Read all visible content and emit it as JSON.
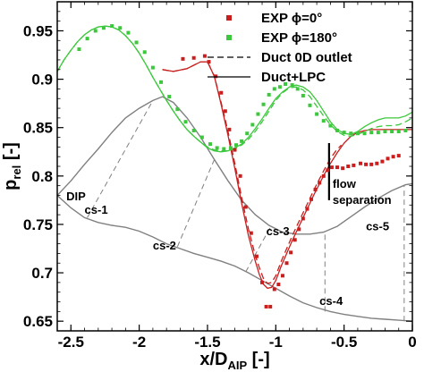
{
  "chart_data": {
    "type": "line",
    "xlim": [
      -2.6,
      0.0
    ],
    "ylim": [
      0.64,
      0.98
    ],
    "xticks": [
      -2.5,
      -2,
      -1.5,
      -1,
      -0.5,
      0
    ],
    "xtick_labels": [
      "-2.5",
      "-2",
      "-1.5",
      "-1",
      "-0.5",
      "0"
    ],
    "yticks": [
      0.65,
      0.7,
      0.75,
      0.8,
      0.85,
      0.9,
      0.95
    ],
    "ytick_labels": [
      "0.65",
      "0.7",
      "0.75",
      "0.8",
      "0.85",
      "0.9",
      "0.95"
    ],
    "xlabel": {
      "main": "x/D",
      "sub": "AIP",
      "tail": " [-]"
    },
    "ylabel": {
      "main": "p",
      "sub": "rel",
      "tail": " [-]"
    },
    "grid": false,
    "legend_position": "top-right",
    "legend": [
      {
        "label": "EXP ϕ=0°",
        "color": "#c81e1e",
        "style": "marker"
      },
      {
        "label": "EXP ϕ=180°",
        "color": "#3cc83c",
        "style": "marker"
      },
      {
        "label": "Duct 0D outlet",
        "color": "#000000",
        "style": "dashed"
      },
      {
        "label": "Duct+LPC",
        "color": "#000000",
        "style": "solid"
      }
    ],
    "series": [
      {
        "name": "EXP ϕ=0°",
        "kind": "markers",
        "color": "#c81e1e",
        "x": [
          -1.68,
          -1.6,
          -1.52,
          -1.49,
          -1.44,
          -1.4,
          -1.37,
          -1.34,
          -1.3,
          -1.26,
          -1.22,
          -1.18,
          -1.14,
          -1.1,
          -1.07,
          -1.04,
          -1.01,
          -0.98,
          -0.95,
          -0.92,
          -0.89,
          -0.86,
          -0.83,
          -0.8,
          -0.77,
          -0.74,
          -0.71,
          -0.68,
          -0.65,
          -0.62,
          -0.59,
          -0.55,
          -0.51,
          -0.47,
          -0.43,
          -0.38,
          -0.34,
          -0.3,
          -0.26,
          -0.22,
          -0.18,
          -0.14,
          -0.1
        ],
        "y": [
          0.921,
          0.922,
          0.924,
          0.918,
          0.903,
          0.886,
          0.867,
          0.848,
          0.827,
          0.8,
          0.768,
          0.741,
          0.717,
          0.69,
          0.665,
          0.665,
          0.683,
          0.688,
          0.697,
          0.71,
          0.721,
          0.734,
          0.745,
          0.756,
          0.766,
          0.776,
          0.786,
          0.793,
          0.8,
          0.806,
          0.809,
          0.809,
          0.808,
          0.81,
          0.811,
          0.813,
          0.812,
          0.812,
          0.813,
          0.815,
          0.818,
          0.82,
          0.821
        ]
      },
      {
        "name": "EXP ϕ=180°",
        "kind": "markers",
        "color": "#3cc83c",
        "x": [
          -2.44,
          -2.38,
          -2.32,
          -2.26,
          -2.2,
          -2.14,
          -2.08,
          -2.02,
          -1.96,
          -1.9,
          -1.84,
          -1.78,
          -1.72,
          -1.66,
          -1.6,
          -1.54,
          -1.48,
          -1.43,
          -1.38,
          -1.33,
          -1.29,
          -1.25,
          -1.21,
          -1.17,
          -1.13,
          -1.09,
          -1.05,
          -1.01,
          -0.97,
          -0.93,
          -0.88,
          -0.84,
          -0.8,
          -0.75,
          -0.7,
          -0.65,
          -0.6,
          -0.55,
          -0.5,
          -0.45,
          -0.4,
          -0.35,
          -0.3,
          -0.25,
          -0.2,
          -0.15,
          -0.1,
          -0.05
        ],
        "y": [
          0.931,
          0.942,
          0.95,
          0.953,
          0.955,
          0.953,
          0.948,
          0.938,
          0.928,
          0.912,
          0.897,
          0.882,
          0.869,
          0.856,
          0.847,
          0.84,
          0.833,
          0.829,
          0.828,
          0.829,
          0.832,
          0.836,
          0.844,
          0.853,
          0.864,
          0.874,
          0.884,
          0.89,
          0.892,
          0.895,
          0.894,
          0.89,
          0.883,
          0.873,
          0.864,
          0.857,
          0.852,
          0.847,
          0.845,
          0.844,
          0.844,
          0.844,
          0.845,
          0.845,
          0.846,
          0.846,
          0.846,
          0.847
        ]
      },
      {
        "name": "Duct 0D outlet (phi=0)",
        "kind": "line",
        "dashed": true,
        "color": "#c81e1e",
        "x": [
          -1.83,
          -1.75,
          -1.65,
          -1.55,
          -1.5,
          -1.45,
          -1.4,
          -1.35,
          -1.3,
          -1.25,
          -1.2,
          -1.15,
          -1.12,
          -1.09,
          -1.06,
          -1.03,
          -1.0,
          -0.96,
          -0.92,
          -0.88,
          -0.84,
          -0.8,
          -0.76,
          -0.72,
          -0.68,
          -0.64,
          -0.6,
          -0.56,
          -0.52
        ],
        "y": [
          0.91,
          0.908,
          0.911,
          0.918,
          0.918,
          0.903,
          0.876,
          0.846,
          0.813,
          0.778,
          0.745,
          0.718,
          0.705,
          0.694,
          0.689,
          0.69,
          0.697,
          0.712,
          0.725,
          0.738,
          0.75,
          0.762,
          0.774,
          0.786,
          0.797,
          0.808,
          0.818,
          0.826,
          0.832
        ]
      },
      {
        "name": "Duct+LPC (phi=0)",
        "kind": "line",
        "dashed": false,
        "color": "#c81e1e",
        "x": [
          -1.83,
          -1.75,
          -1.65,
          -1.55,
          -1.5,
          -1.45,
          -1.4,
          -1.35,
          -1.3,
          -1.25,
          -1.2,
          -1.15,
          -1.12,
          -1.09,
          -1.06,
          -1.03,
          -1.0,
          -0.96,
          -0.92,
          -0.88,
          -0.84,
          -0.8,
          -0.76,
          -0.72,
          -0.68,
          -0.64,
          -0.6,
          -0.55,
          -0.5,
          -0.45,
          -0.4,
          -0.35,
          -0.3,
          -0.25,
          -0.2,
          -0.15,
          -0.1,
          -0.05,
          0.0
        ],
        "y": [
          0.91,
          0.908,
          0.911,
          0.918,
          0.918,
          0.903,
          0.874,
          0.842,
          0.808,
          0.772,
          0.738,
          0.712,
          0.698,
          0.688,
          0.684,
          0.685,
          0.692,
          0.707,
          0.72,
          0.733,
          0.745,
          0.757,
          0.769,
          0.781,
          0.792,
          0.803,
          0.813,
          0.824,
          0.834,
          0.841,
          0.845,
          0.847,
          0.848,
          0.848,
          0.848,
          0.848,
          0.848,
          0.848,
          0.848
        ]
      },
      {
        "name": "Duct 0D outlet (phi=180)",
        "kind": "line",
        "dashed": true,
        "color": "#3cc83c",
        "x": [
          -2.6,
          -2.55,
          -2.5,
          -2.45,
          -2.4,
          -2.35,
          -2.3,
          -2.25,
          -2.2,
          -2.15,
          -2.1,
          -2.05,
          -2.0,
          -1.95,
          -1.9,
          -1.85,
          -1.8,
          -1.75,
          -1.7,
          -1.65,
          -1.6,
          -1.55,
          -1.5,
          -1.45,
          -1.4,
          -1.35,
          -1.3,
          -1.25,
          -1.2,
          -1.15,
          -1.1,
          -1.05,
          -1.0,
          -0.95,
          -0.9,
          -0.85,
          -0.8,
          -0.75,
          -0.7,
          -0.65,
          -0.6,
          -0.55,
          -0.5,
          -0.45,
          -0.4,
          -0.35,
          -0.3,
          -0.25,
          -0.2,
          -0.15,
          -0.1,
          -0.05,
          0.0
        ],
        "y": [
          0.908,
          0.92,
          0.93,
          0.939,
          0.946,
          0.951,
          0.954,
          0.955,
          0.954,
          0.951,
          0.945,
          0.937,
          0.927,
          0.915,
          0.902,
          0.89,
          0.878,
          0.867,
          0.857,
          0.848,
          0.841,
          0.835,
          0.83,
          0.827,
          0.826,
          0.826,
          0.828,
          0.832,
          0.838,
          0.846,
          0.856,
          0.867,
          0.878,
          0.886,
          0.891,
          0.892,
          0.889,
          0.882,
          0.872,
          0.862,
          0.853,
          0.846,
          0.842,
          0.841,
          0.843,
          0.846,
          0.849,
          0.851,
          0.852,
          0.852,
          0.853,
          0.856,
          0.86
        ]
      },
      {
        "name": "Duct+LPC (phi=180)",
        "kind": "line",
        "dashed": false,
        "color": "#3cc83c",
        "x": [
          -2.6,
          -2.55,
          -2.5,
          -2.45,
          -2.4,
          -2.35,
          -2.3,
          -2.25,
          -2.2,
          -2.15,
          -2.1,
          -2.05,
          -2.0,
          -1.95,
          -1.9,
          -1.85,
          -1.8,
          -1.75,
          -1.7,
          -1.65,
          -1.6,
          -1.55,
          -1.5,
          -1.45,
          -1.4,
          -1.35,
          -1.3,
          -1.25,
          -1.2,
          -1.15,
          -1.1,
          -1.05,
          -1.0,
          -0.95,
          -0.9,
          -0.85,
          -0.8,
          -0.75,
          -0.7,
          -0.65,
          -0.6,
          -0.55,
          -0.5,
          -0.45,
          -0.4,
          -0.35,
          -0.3,
          -0.25,
          -0.2,
          -0.15,
          -0.1,
          -0.05,
          0.0
        ],
        "y": [
          0.908,
          0.92,
          0.93,
          0.939,
          0.946,
          0.951,
          0.954,
          0.955,
          0.954,
          0.951,
          0.945,
          0.937,
          0.927,
          0.915,
          0.902,
          0.89,
          0.878,
          0.867,
          0.857,
          0.848,
          0.841,
          0.835,
          0.829,
          0.826,
          0.825,
          0.826,
          0.829,
          0.833,
          0.84,
          0.849,
          0.859,
          0.87,
          0.88,
          0.887,
          0.892,
          0.894,
          0.892,
          0.887,
          0.878,
          0.867,
          0.856,
          0.848,
          0.844,
          0.843,
          0.846,
          0.851,
          0.855,
          0.858,
          0.86,
          0.86,
          0.86,
          0.862,
          0.866
        ]
      }
    ],
    "duct_geometry": {
      "color": "#808080",
      "upper_wall": {
        "x": [
          -2.6,
          -2.5,
          -2.4,
          -2.3,
          -2.2,
          -2.1,
          -2.0,
          -1.9,
          -1.83,
          -1.75,
          -1.65,
          -1.55,
          -1.45,
          -1.35,
          -1.25,
          -1.15,
          -1.05,
          -0.95,
          -0.85,
          -0.75,
          -0.65,
          -0.55,
          -0.45,
          -0.35,
          -0.25,
          -0.15,
          -0.05,
          0.0
        ],
        "y": [
          0.78,
          0.795,
          0.812,
          0.828,
          0.845,
          0.86,
          0.87,
          0.878,
          0.882,
          0.876,
          0.86,
          0.84,
          0.817,
          0.795,
          0.775,
          0.76,
          0.749,
          0.742,
          0.74,
          0.74,
          0.742,
          0.748,
          0.758,
          0.768,
          0.777,
          0.785,
          0.791,
          0.792
        ]
      },
      "lower_wall": {
        "x": [
          -2.6,
          -2.5,
          -2.4,
          -2.3,
          -2.2,
          -2.1,
          -2.0,
          -1.9,
          -1.8,
          -1.7,
          -1.6,
          -1.5,
          -1.4,
          -1.3,
          -1.2,
          -1.1,
          -1.0,
          -0.9,
          -0.8,
          -0.7,
          -0.6,
          -0.5,
          -0.4,
          -0.3,
          -0.2,
          -0.1,
          0.0
        ],
        "y": [
          0.78,
          0.767,
          0.757,
          0.752,
          0.749,
          0.747,
          0.743,
          0.737,
          0.73,
          0.725,
          0.72,
          0.716,
          0.712,
          0.707,
          0.7,
          0.692,
          0.684,
          0.676,
          0.669,
          0.664,
          0.66,
          0.657,
          0.655,
          0.653,
          0.652,
          0.651,
          0.65
        ]
      },
      "cross_sections": [
        {
          "label": "cs-1",
          "x1": -2.38,
          "y1": 0.757,
          "x2": -1.9,
          "y2": 0.878,
          "label_x": -2.4,
          "label_y": 0.761
        },
        {
          "label": "cs-2",
          "x1": -1.72,
          "y1": 0.727,
          "x2": -1.45,
          "y2": 0.817,
          "label_x": -1.9,
          "label_y": 0.724
        },
        {
          "label": "cs-3",
          "x1": -1.22,
          "y1": 0.701,
          "x2": -1.04,
          "y2": 0.747,
          "label_x": -1.07,
          "label_y": 0.739
        },
        {
          "label": "cs-4",
          "x1": -0.64,
          "y1": 0.66,
          "x2": -0.64,
          "y2": 0.741,
          "label_x": -0.68,
          "label_y": 0.667
        },
        {
          "label": "cs-5",
          "x1": -0.06,
          "y1": 0.65,
          "x2": -0.06,
          "y2": 0.791,
          "label_x": -0.34,
          "label_y": 0.744
        }
      ]
    },
    "annotations": [
      {
        "text": "DIP",
        "x": -2.56,
        "y": 0.775
      },
      {
        "text": "flow",
        "x": -0.61,
        "y": 0.788
      },
      {
        "text": "separation",
        "x": -0.61,
        "y": 0.771
      }
    ],
    "separation_line": {
      "x": -0.61,
      "y1": 0.775,
      "y2": 0.834
    }
  }
}
